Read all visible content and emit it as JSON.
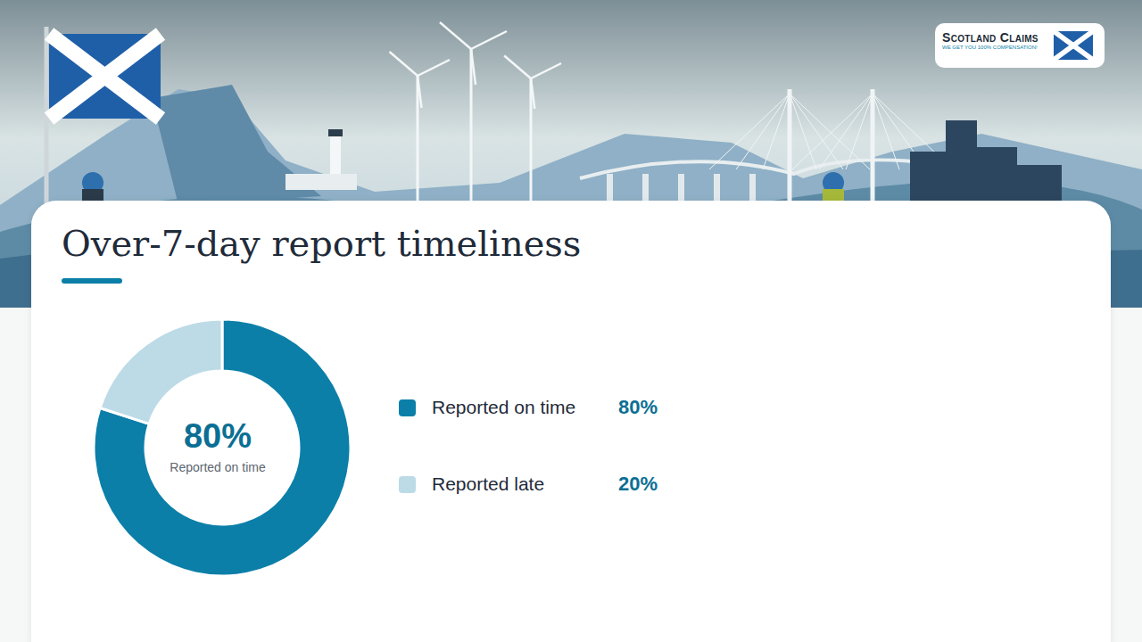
{
  "chart_data": {
    "type": "pie",
    "title": "Over-7-day report timeliness",
    "categories": [
      "Reported on time",
      "Reported late"
    ],
    "values": [
      80,
      20
    ],
    "value_labels": [
      "80%",
      "20%"
    ],
    "colors": [
      "#0b7fa8",
      "#bcdbe6"
    ]
  },
  "logo": {
    "title": "Scotland Claims",
    "tagline": "WE GET YOU 100% COMPENSATION!"
  }
}
